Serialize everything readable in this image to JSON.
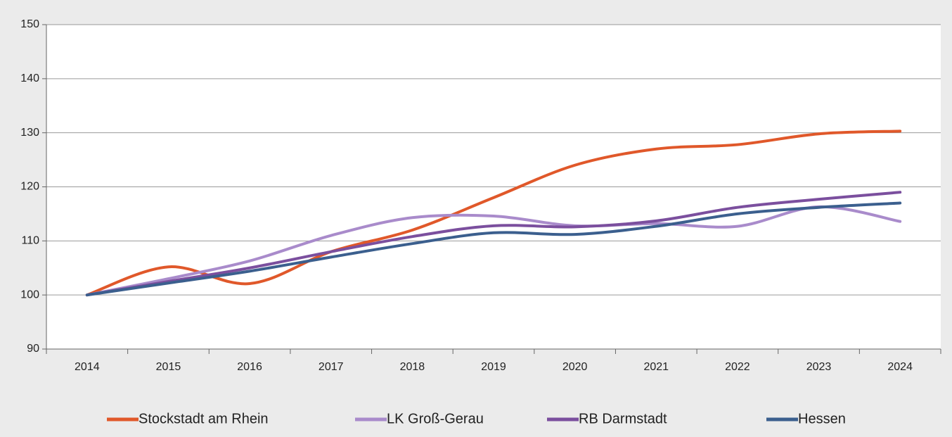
{
  "chart_data": {
    "type": "line",
    "categories": [
      "2014",
      "2015",
      "2016",
      "2017",
      "2018",
      "2019",
      "2020",
      "2021",
      "2022",
      "2023",
      "2024"
    ],
    "series": [
      {
        "name": "Stockstadt am Rhein",
        "color": "#e0582a",
        "values": [
          100,
          105.2,
          102.1,
          108,
          112,
          118,
          124,
          127,
          127.8,
          129.8,
          130.3
        ]
      },
      {
        "name": "LK Groß-Gerau",
        "color": "#a98bcb",
        "values": [
          100,
          103,
          106.3,
          111,
          114.3,
          114.6,
          112.8,
          113.2,
          112.7,
          116.3,
          113.6
        ]
      },
      {
        "name": "RB Darmstadt",
        "color": "#7b4f9e",
        "values": [
          100,
          102.5,
          105,
          108,
          110.8,
          112.8,
          112.6,
          113.7,
          116.2,
          117.7,
          119
        ]
      },
      {
        "name": "Hessen",
        "color": "#3b5f8e",
        "values": [
          100,
          102.2,
          104.4,
          107,
          109.5,
          111.5,
          111.2,
          112.7,
          115,
          116.2,
          117
        ]
      }
    ],
    "ylim": [
      90,
      150
    ],
    "yticks": [
      90,
      100,
      110,
      120,
      130,
      140,
      150
    ],
    "grid": true,
    "legend": "bottom"
  }
}
